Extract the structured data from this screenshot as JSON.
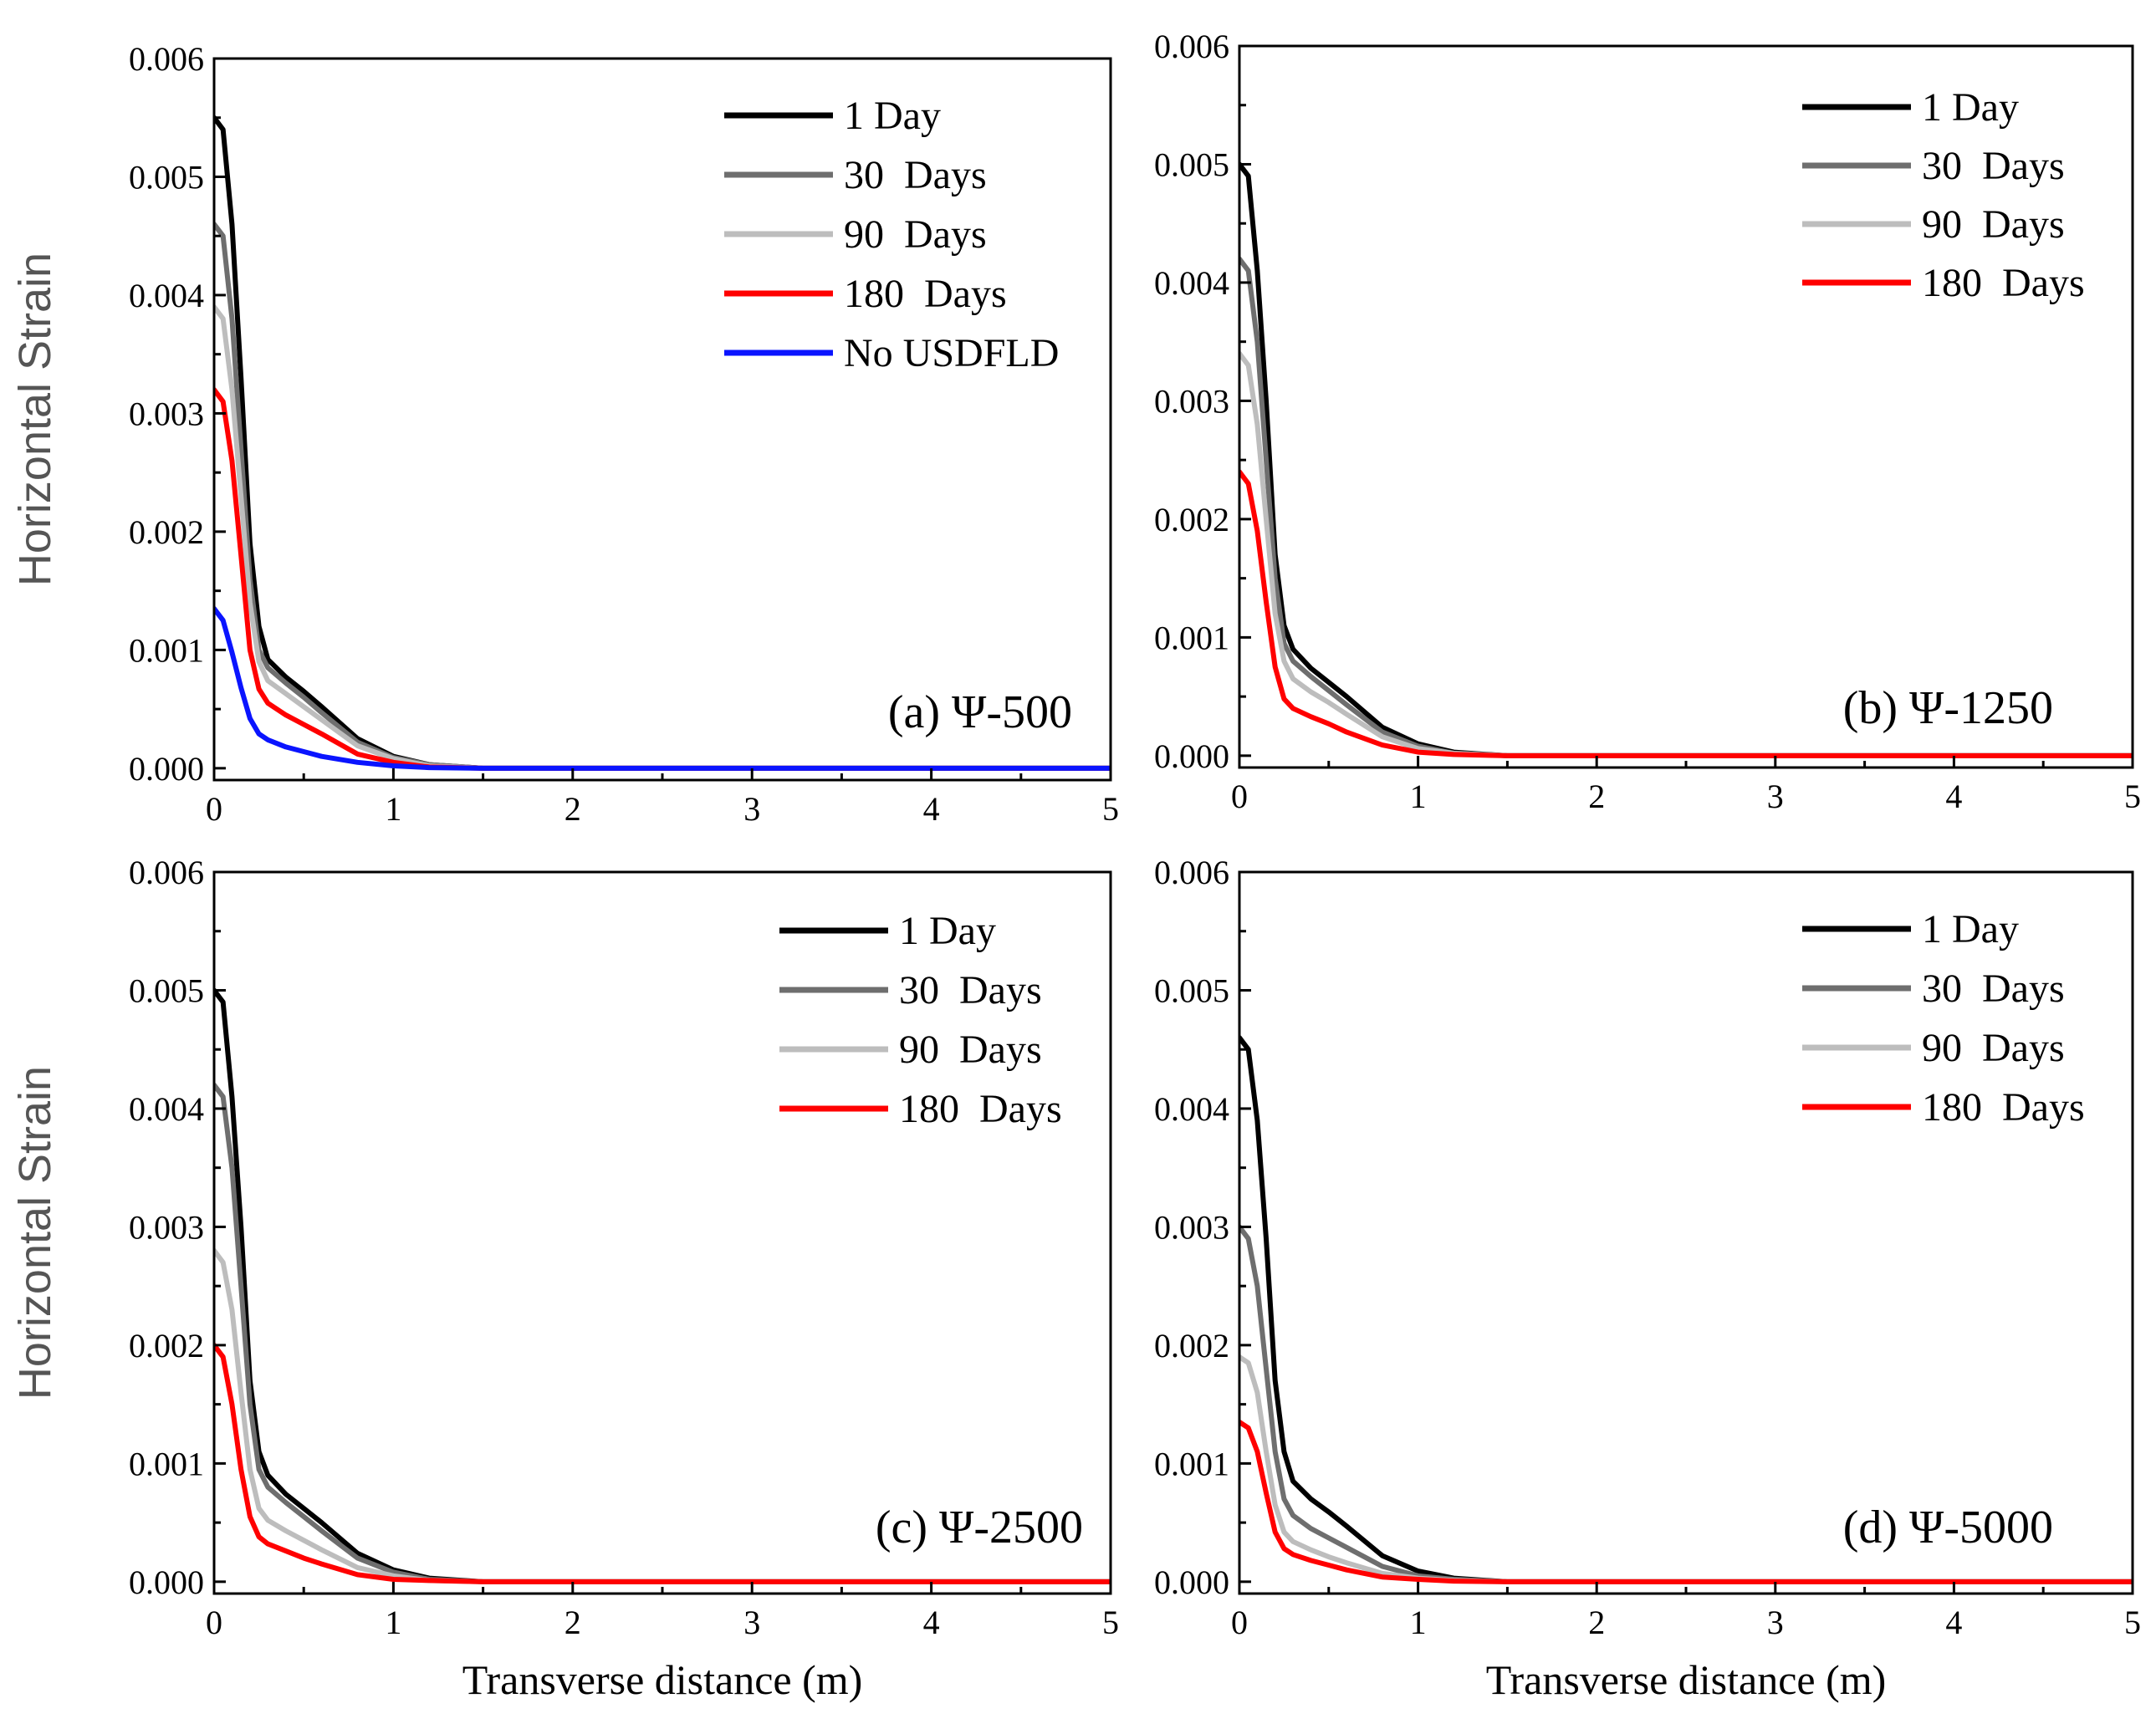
{
  "figure": {
    "ylabel": "Horizontal Strain",
    "xlabel": "Transverse distance (m)"
  },
  "colors": {
    "1 Day": "#000000",
    "30  Days": "#6e6e6e",
    "90  Days": "#bdbdbd",
    "180  Days": "#ff0000",
    "No USDFLD": "#0a14ff"
  },
  "chart_data": [
    {
      "type": "line",
      "panel_label": "(a) Ψ-500",
      "xlabel": "",
      "ylabel": "Horizontal Strain",
      "xlim": [
        0,
        5
      ],
      "ylim": [
        -0.0001,
        0.006
      ],
      "xticks": [
        "0",
        "1",
        "2",
        "3",
        "4",
        "5"
      ],
      "yticks": [
        "0.000",
        "0.001",
        "0.002",
        "0.003",
        "0.004",
        "0.005",
        "0.006"
      ],
      "legend": "top-right",
      "series": [
        {
          "name": "1 Day",
          "x": [
            0,
            0.05,
            0.1,
            0.15,
            0.2,
            0.25,
            0.3,
            0.4,
            0.5,
            0.6,
            0.8,
            1.0,
            1.2,
            1.5,
            2,
            3,
            4,
            5
          ],
          "y": [
            0.0055,
            0.0054,
            0.0046,
            0.0033,
            0.0019,
            0.0012,
            0.00092,
            0.00077,
            0.00065,
            0.00052,
            0.00025,
            0.0001,
            3e-05,
            0.0,
            0.0,
            0.0,
            0.0,
            0.0
          ]
        },
        {
          "name": "30  Days",
          "x": [
            0,
            0.05,
            0.1,
            0.15,
            0.2,
            0.25,
            0.3,
            0.4,
            0.5,
            0.6,
            0.8,
            1.0,
            1.2,
            1.5,
            2,
            3,
            4,
            5
          ],
          "y": [
            0.0046,
            0.0045,
            0.0038,
            0.0027,
            0.0016,
            0.001,
            0.00085,
            0.00072,
            0.0006,
            0.00047,
            0.00022,
            9e-05,
            3e-05,
            0.0,
            0.0,
            0.0,
            0.0,
            0.0
          ]
        },
        {
          "name": "90  Days",
          "x": [
            0,
            0.05,
            0.1,
            0.15,
            0.2,
            0.25,
            0.3,
            0.4,
            0.5,
            0.6,
            0.8,
            1.0,
            1.2,
            1.5,
            2,
            3,
            4,
            5
          ],
          "y": [
            0.0039,
            0.0038,
            0.0032,
            0.0023,
            0.0014,
            0.0009,
            0.00074,
            0.00063,
            0.00052,
            0.00041,
            0.00019,
            8e-05,
            2e-05,
            0.0,
            0.0,
            0.0,
            0.0,
            0.0
          ]
        },
        {
          "name": "180  Days",
          "x": [
            0,
            0.05,
            0.1,
            0.15,
            0.2,
            0.25,
            0.3,
            0.4,
            0.5,
            0.6,
            0.8,
            1.0,
            1.2,
            1.5,
            2,
            3,
            4,
            5
          ],
          "y": [
            0.0032,
            0.0031,
            0.0026,
            0.0018,
            0.001,
            0.00067,
            0.00055,
            0.00045,
            0.00037,
            0.00029,
            0.00012,
            5e-05,
            1e-05,
            0.0,
            0.0,
            0.0,
            0.0,
            0.0
          ]
        },
        {
          "name": "No USDFLD",
          "x": [
            0,
            0.05,
            0.1,
            0.15,
            0.2,
            0.25,
            0.3,
            0.4,
            0.5,
            0.6,
            0.8,
            1.0,
            1.2,
            1.5,
            2,
            3,
            4,
            5
          ],
          "y": [
            0.00135,
            0.00125,
            0.00098,
            0.00068,
            0.00042,
            0.00029,
            0.00024,
            0.00018,
            0.00014,
            0.0001,
            5e-05,
            2e-05,
            5e-06,
            0.0,
            0.0,
            0.0,
            0.0,
            0.0
          ]
        }
      ]
    },
    {
      "type": "line",
      "panel_label": "(b) Ψ-1250",
      "xlabel": "",
      "ylabel": "",
      "xlim": [
        0,
        5
      ],
      "ylim": [
        -0.0001,
        0.006
      ],
      "xticks": [
        "0",
        "1",
        "2",
        "3",
        "4",
        "5"
      ],
      "yticks": [
        "0.000",
        "0.001",
        "0.002",
        "0.003",
        "0.004",
        "0.005",
        "0.006"
      ],
      "legend": "top-right",
      "series": [
        {
          "name": "1 Day",
          "x": [
            0,
            0.05,
            0.1,
            0.15,
            0.2,
            0.25,
            0.3,
            0.4,
            0.5,
            0.6,
            0.8,
            1.0,
            1.2,
            1.5,
            2,
            3,
            4,
            5
          ],
          "y": [
            0.005,
            0.0049,
            0.0041,
            0.003,
            0.0017,
            0.0011,
            0.0009,
            0.00074,
            0.00062,
            0.0005,
            0.00024,
            0.0001,
            3e-05,
            0.0,
            0.0,
            0.0,
            0.0,
            0.0
          ]
        },
        {
          "name": "30  Days",
          "x": [
            0,
            0.05,
            0.1,
            0.15,
            0.2,
            0.25,
            0.3,
            0.4,
            0.5,
            0.6,
            0.8,
            1.0,
            1.2,
            1.5,
            2,
            3,
            4,
            5
          ],
          "y": [
            0.0042,
            0.0041,
            0.0035,
            0.0025,
            0.0015,
            0.00095,
            0.0008,
            0.00067,
            0.00055,
            0.00043,
            0.0002,
            8e-05,
            2e-05,
            0.0,
            0.0,
            0.0,
            0.0,
            0.0
          ]
        },
        {
          "name": "90  Days",
          "x": [
            0,
            0.05,
            0.1,
            0.15,
            0.2,
            0.25,
            0.3,
            0.4,
            0.5,
            0.6,
            0.8,
            1.0,
            1.2,
            1.5,
            2,
            3,
            4,
            5
          ],
          "y": [
            0.0034,
            0.0033,
            0.0028,
            0.002,
            0.0012,
            0.0008,
            0.00065,
            0.00054,
            0.00045,
            0.00035,
            0.00016,
            6e-05,
            2e-05,
            0.0,
            0.0,
            0.0,
            0.0,
            0.0
          ]
        },
        {
          "name": "180  Days",
          "x": [
            0,
            0.05,
            0.1,
            0.15,
            0.2,
            0.25,
            0.3,
            0.4,
            0.5,
            0.6,
            0.8,
            1.0,
            1.2,
            1.5,
            2,
            3,
            4,
            5
          ],
          "y": [
            0.0024,
            0.0023,
            0.0019,
            0.0013,
            0.00075,
            0.00048,
            0.0004,
            0.00033,
            0.00027,
            0.0002,
            9e-05,
            3e-05,
            1e-05,
            0.0,
            0.0,
            0.0,
            0.0,
            0.0
          ]
        }
      ]
    },
    {
      "type": "line",
      "panel_label": "(c) Ψ-2500",
      "xlabel": "Transverse distance (m)",
      "ylabel": "Horizontal Strain",
      "xlim": [
        0,
        5
      ],
      "ylim": [
        -0.0001,
        0.006
      ],
      "xticks": [
        "0",
        "1",
        "2",
        "3",
        "4",
        "5"
      ],
      "yticks": [
        "0.000",
        "0.001",
        "0.002",
        "0.003",
        "0.004",
        "0.005",
        "0.006"
      ],
      "legend": "top-right",
      "series": [
        {
          "name": "1 Day",
          "x": [
            0,
            0.05,
            0.1,
            0.15,
            0.2,
            0.25,
            0.3,
            0.4,
            0.5,
            0.6,
            0.8,
            1.0,
            1.2,
            1.5,
            2,
            3,
            4,
            5
          ],
          "y": [
            0.005,
            0.0049,
            0.0041,
            0.003,
            0.0017,
            0.0011,
            0.0009,
            0.00074,
            0.00062,
            0.0005,
            0.00024,
            0.0001,
            3e-05,
            0.0,
            0.0,
            0.0,
            0.0,
            0.0
          ]
        },
        {
          "name": "30  Days",
          "x": [
            0,
            0.05,
            0.1,
            0.15,
            0.2,
            0.25,
            0.3,
            0.4,
            0.5,
            0.6,
            0.8,
            1.0,
            1.2,
            1.5,
            2,
            3,
            4,
            5
          ],
          "y": [
            0.0042,
            0.0041,
            0.0035,
            0.0025,
            0.0015,
            0.00095,
            0.0008,
            0.00067,
            0.00055,
            0.00043,
            0.0002,
            8e-05,
            2e-05,
            0.0,
            0.0,
            0.0,
            0.0,
            0.0
          ]
        },
        {
          "name": "90  Days",
          "x": [
            0,
            0.05,
            0.1,
            0.15,
            0.2,
            0.25,
            0.3,
            0.4,
            0.5,
            0.6,
            0.8,
            1.0,
            1.2,
            1.5,
            2,
            3,
            4,
            5
          ],
          "y": [
            0.0028,
            0.0027,
            0.0023,
            0.0016,
            0.00095,
            0.00062,
            0.00052,
            0.00043,
            0.00035,
            0.00027,
            0.00012,
            5e-05,
            1e-05,
            0.0,
            0.0,
            0.0,
            0.0,
            0.0
          ]
        },
        {
          "name": "180  Days",
          "x": [
            0,
            0.05,
            0.1,
            0.15,
            0.2,
            0.25,
            0.3,
            0.4,
            0.5,
            0.6,
            0.8,
            1.0,
            1.2,
            1.5,
            2,
            3,
            4,
            5
          ],
          "y": [
            0.002,
            0.0019,
            0.0015,
            0.00095,
            0.00055,
            0.00038,
            0.00032,
            0.00026,
            0.0002,
            0.00015,
            6e-05,
            2e-05,
            1e-05,
            0.0,
            0.0,
            0.0,
            0.0,
            0.0
          ]
        }
      ]
    },
    {
      "type": "line",
      "panel_label": "(d) Ψ-5000",
      "xlabel": "Transverse distance (m)",
      "ylabel": "",
      "xlim": [
        0,
        5
      ],
      "ylim": [
        -0.0001,
        0.006
      ],
      "xticks": [
        "0",
        "1",
        "2",
        "3",
        "4",
        "5"
      ],
      "yticks": [
        "0.000",
        "0.001",
        "0.002",
        "0.003",
        "0.004",
        "0.005",
        "0.006"
      ],
      "legend": "top-right",
      "series": [
        {
          "name": "1 Day",
          "x": [
            0,
            0.05,
            0.1,
            0.15,
            0.2,
            0.25,
            0.3,
            0.4,
            0.5,
            0.6,
            0.8,
            1.0,
            1.2,
            1.5,
            2,
            3,
            4,
            5
          ],
          "y": [
            0.0046,
            0.0045,
            0.0039,
            0.0029,
            0.0017,
            0.0011,
            0.00085,
            0.0007,
            0.00059,
            0.00047,
            0.00022,
            9e-05,
            3e-05,
            0.0,
            0.0,
            0.0,
            0.0,
            0.0
          ]
        },
        {
          "name": "30  Days",
          "x": [
            0,
            0.05,
            0.1,
            0.15,
            0.2,
            0.25,
            0.3,
            0.4,
            0.5,
            0.6,
            0.8,
            1.0,
            1.2,
            1.5,
            2,
            3,
            4,
            5
          ],
          "y": [
            0.003,
            0.0029,
            0.0025,
            0.0018,
            0.0011,
            0.0007,
            0.00056,
            0.00045,
            0.00037,
            0.00029,
            0.00013,
            5e-05,
            2e-05,
            0.0,
            0.0,
            0.0,
            0.0,
            0.0
          ]
        },
        {
          "name": "90  Days",
          "x": [
            0,
            0.05,
            0.1,
            0.15,
            0.2,
            0.25,
            0.3,
            0.4,
            0.5,
            0.6,
            0.8,
            1.0,
            1.2,
            1.5,
            2,
            3,
            4,
            5
          ],
          "y": [
            0.0019,
            0.00185,
            0.0016,
            0.0011,
            0.00065,
            0.00042,
            0.00034,
            0.00027,
            0.00021,
            0.00016,
            7e-05,
            3e-05,
            1e-05,
            0.0,
            0.0,
            0.0,
            0.0,
            0.0
          ]
        },
        {
          "name": "180  Days",
          "x": [
            0,
            0.05,
            0.1,
            0.15,
            0.2,
            0.25,
            0.3,
            0.4,
            0.5,
            0.6,
            0.8,
            1.0,
            1.2,
            1.5,
            2,
            3,
            4,
            5
          ],
          "y": [
            0.00135,
            0.0013,
            0.0011,
            0.00075,
            0.00042,
            0.00028,
            0.00023,
            0.00018,
            0.00014,
            0.0001,
            4e-05,
            2e-05,
            5e-06,
            0.0,
            0.0,
            0.0,
            0.0,
            0.0
          ]
        }
      ]
    }
  ]
}
